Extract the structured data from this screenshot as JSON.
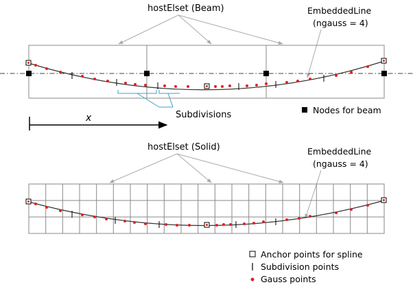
{
  "beam_panel": {
    "title": "hostElset (Beam)",
    "embedded_label_1": "EmbeddedLine",
    "embedded_label_2": "(ngauss = 4)",
    "subdivisions_label": "Subdivisions",
    "x_axis_label": "x",
    "nodes_legend": "Nodes for beam"
  },
  "solid_panel": {
    "title": "hostElset (Solid)",
    "embedded_label_1": "EmbeddedLine",
    "embedded_label_2": "(ngauss = 4)"
  },
  "legend": {
    "anchor": "Anchor points for spline",
    "subdivision": "Subdivision points",
    "gauss": "Gauss points"
  },
  "colors": {
    "gauss": "#e02020",
    "grid": "#888888",
    "leader": "#aaaaaa",
    "subdivision_bracket": "#3aa0c8"
  }
}
